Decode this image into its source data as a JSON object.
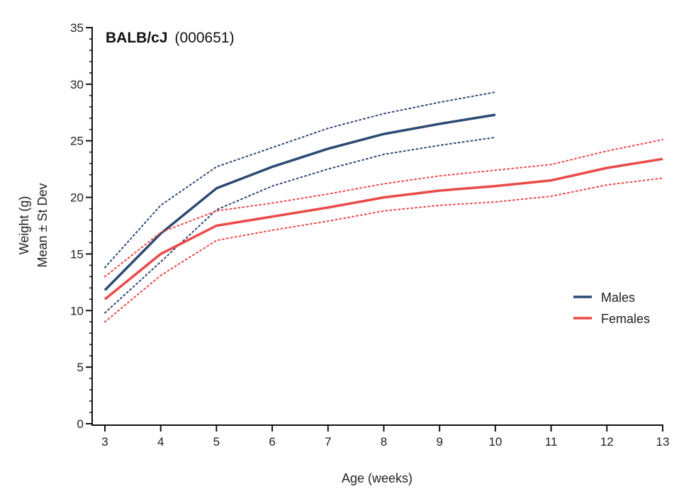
{
  "chart_data": {
    "type": "line",
    "title": {
      "strain": "BALB/cJ",
      "stock": "(000651)"
    },
    "xlabel": "Age (weeks)",
    "ylabel_line1": "Weight (g)",
    "ylabel_line2": "Mean ± St Dev",
    "xlim": [
      3,
      13
    ],
    "ylim": [
      0,
      35
    ],
    "x_ticks": [
      3,
      4,
      5,
      6,
      7,
      8,
      9,
      10,
      11,
      12,
      13
    ],
    "y_ticks": [
      0,
      5,
      10,
      15,
      20,
      25,
      30,
      35
    ],
    "y_minor_step": 1,
    "grid": false,
    "legend_position": "right",
    "series": [
      {
        "name": "Males",
        "color": "#2c4a73",
        "x": [
          3,
          4,
          5,
          6,
          7,
          8,
          9,
          10
        ],
        "mean": [
          11.8,
          16.8,
          20.8,
          22.7,
          24.3,
          25.6,
          26.5,
          27.3
        ],
        "upper": [
          13.8,
          19.3,
          22.7,
          24.4,
          26.1,
          27.4,
          28.4,
          29.3
        ],
        "lower": [
          9.8,
          14.3,
          18.9,
          21.0,
          22.5,
          23.8,
          24.6,
          25.3
        ]
      },
      {
        "name": "Females",
        "color": "#ea4a47",
        "x": [
          3,
          4,
          5,
          6,
          7,
          8,
          9,
          10,
          11,
          12,
          13
        ],
        "mean": [
          11.0,
          15.0,
          17.5,
          18.3,
          19.1,
          20.0,
          20.6,
          21.0,
          21.5,
          22.6,
          23.4
        ],
        "upper": [
          13.0,
          16.9,
          18.8,
          19.5,
          20.3,
          21.2,
          21.9,
          22.4,
          22.9,
          24.1,
          25.1
        ],
        "lower": [
          9.0,
          13.1,
          16.2,
          17.1,
          17.9,
          18.8,
          19.3,
          19.6,
          20.1,
          21.1,
          21.7
        ]
      }
    ]
  }
}
